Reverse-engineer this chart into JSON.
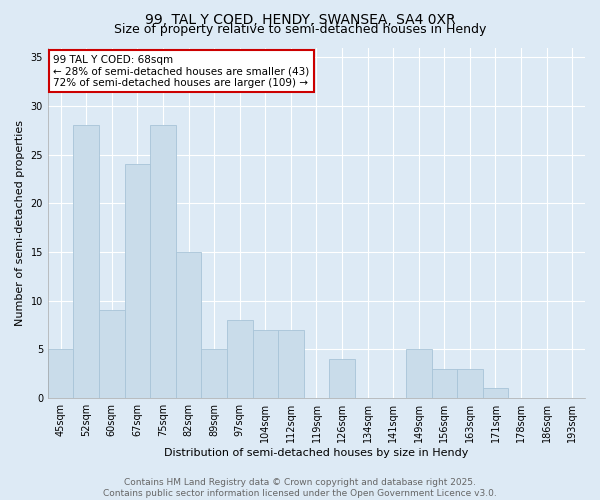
{
  "title_line1": "99, TAL Y COED, HENDY, SWANSEA, SA4 0XR",
  "title_line2": "Size of property relative to semi-detached houses in Hendy",
  "xlabel": "Distribution of semi-detached houses by size in Hendy",
  "ylabel": "Number of semi-detached properties",
  "categories": [
    "45sqm",
    "52sqm",
    "60sqm",
    "67sqm",
    "75sqm",
    "82sqm",
    "89sqm",
    "97sqm",
    "104sqm",
    "112sqm",
    "119sqm",
    "126sqm",
    "134sqm",
    "141sqm",
    "149sqm",
    "156sqm",
    "163sqm",
    "171sqm",
    "178sqm",
    "186sqm",
    "193sqm"
  ],
  "values": [
    5,
    28,
    9,
    24,
    28,
    15,
    5,
    8,
    7,
    7,
    0,
    4,
    0,
    0,
    5,
    3,
    3,
    1,
    0,
    0,
    0
  ],
  "bar_color": "#c9dcea",
  "bar_edge_color": "#a8c4d8",
  "subject_label": "99 TAL Y COED: 68sqm",
  "pct_smaller": 28,
  "count_smaller": 43,
  "pct_larger": 72,
  "count_larger": 109,
  "annotation_box_facecolor": "#ffffff",
  "annotation_box_edgecolor": "#cc0000",
  "subject_vline_x": 2.5,
  "subject_vline_color": "#cc0000",
  "ylim": [
    0,
    36
  ],
  "yticks": [
    0,
    5,
    10,
    15,
    20,
    25,
    30,
    35
  ],
  "bg_color": "#ddeaf5",
  "plot_bg_color": "#ddeaf5",
  "grid_color": "#ffffff",
  "footer_line1": "Contains HM Land Registry data © Crown copyright and database right 2025.",
  "footer_line2": "Contains public sector information licensed under the Open Government Licence v3.0.",
  "title_fontsize": 10,
  "subtitle_fontsize": 9,
  "axis_label_fontsize": 8,
  "tick_fontsize": 7,
  "annotation_fontsize": 7.5,
  "footer_fontsize": 6.5
}
